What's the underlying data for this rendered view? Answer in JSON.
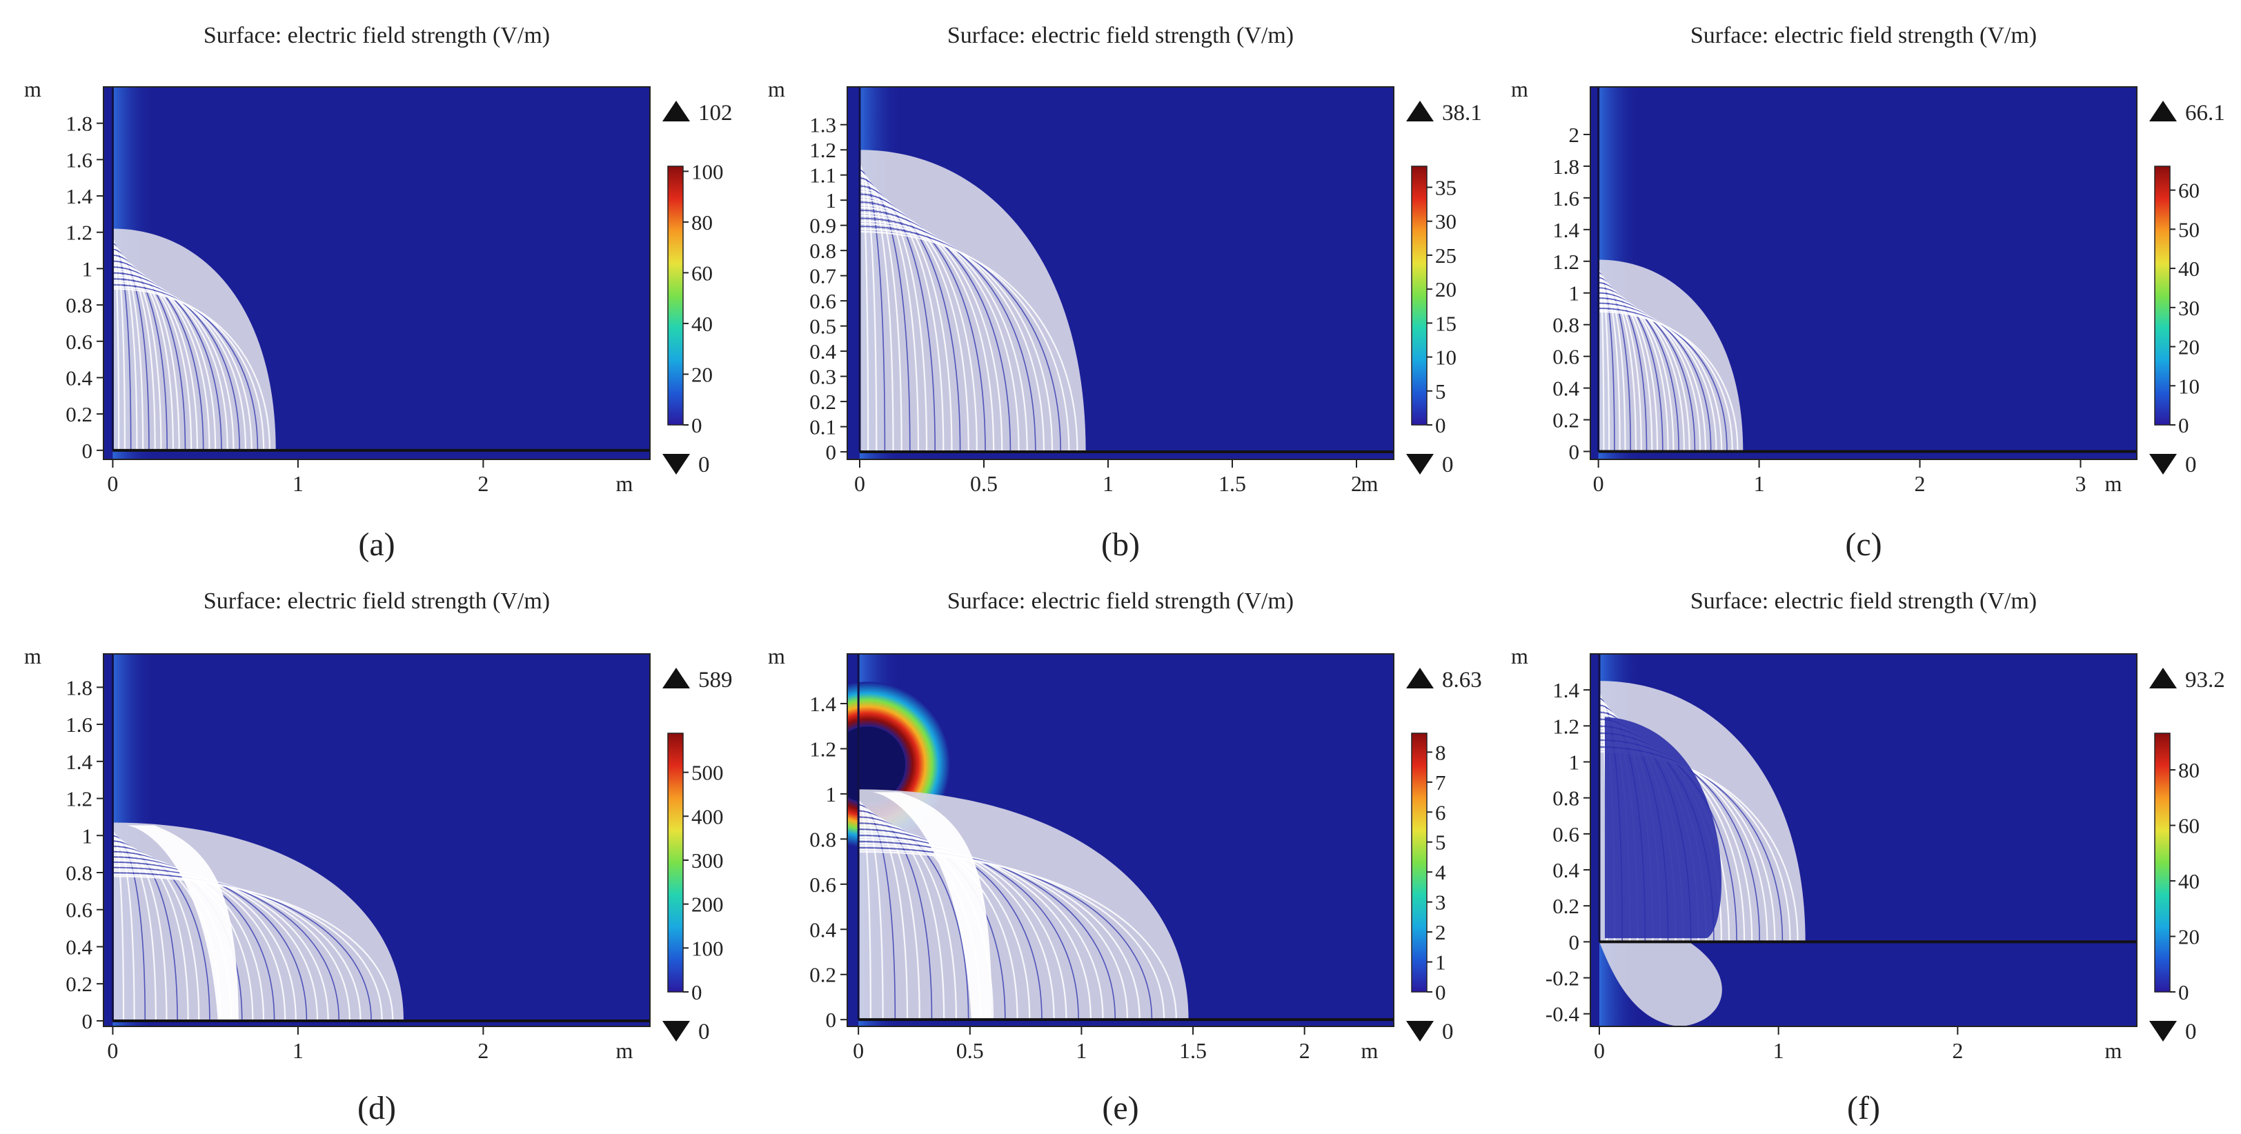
{
  "colors": {
    "background": "#1b1f96",
    "streamline": "#d6d6e6",
    "frame": "#222222"
  },
  "colorbar_stops": [
    "#2a1aa0",
    "#1f5ad6",
    "#1aa8e0",
    "#24d3b0",
    "#7be04a",
    "#e8e13a",
    "#f59a24",
    "#e02a1a",
    "#8a0d0d"
  ],
  "chart_data": [
    {
      "type": "heatmap",
      "panel_label": "(a)",
      "title": "Surface: electric field strength (V/m)",
      "xlabel": "m",
      "ylabel": "m",
      "xlim": [
        -0.05,
        2.9
      ],
      "ylim": [
        -0.05,
        2.0
      ],
      "x_ticks": [
        "0",
        "1",
        "2"
      ],
      "x_tick_values": [
        0,
        1,
        2
      ],
      "y_ticks": [
        "0",
        "0.2",
        "0.4",
        "0.6",
        "0.8",
        "1",
        "1.2",
        "1.4",
        "1.6",
        "1.8"
      ],
      "y_tick_values": [
        0,
        0.2,
        0.4,
        0.6,
        0.8,
        1,
        1.2,
        1.4,
        1.6,
        1.8
      ],
      "max_label": "102",
      "min_label": "0",
      "colorbar_range": [
        0,
        102
      ],
      "colorbar_ticks": [
        "0",
        "20",
        "40",
        "60",
        "80",
        "100"
      ],
      "colorbar_tick_values": [
        0,
        20,
        40,
        60,
        80,
        100
      ],
      "lobe": {
        "outer_x": 0.88,
        "outer_y": 1.22,
        "inner_x": 0.5,
        "gap_x": null
      }
    },
    {
      "type": "heatmap",
      "panel_label": "(b)",
      "title": "Surface: electric field strength (V/m)",
      "xlabel": "m",
      "ylabel": "m",
      "xlim": [
        -0.05,
        2.15
      ],
      "ylim": [
        -0.03,
        1.45
      ],
      "x_ticks": [
        "0",
        "0.5",
        "1",
        "1.5",
        "2"
      ],
      "x_tick_values": [
        0,
        0.5,
        1,
        1.5,
        2
      ],
      "y_ticks": [
        "0",
        "0.1",
        "0.2",
        "0.3",
        "0.4",
        "0.5",
        "0.6",
        "0.7",
        "0.8",
        "0.9",
        "1",
        "1.1",
        "1.2",
        "1.3"
      ],
      "y_tick_values": [
        0,
        0.1,
        0.2,
        0.3,
        0.4,
        0.5,
        0.6,
        0.7,
        0.8,
        0.9,
        1,
        1.1,
        1.2,
        1.3
      ],
      "max_label": "38.1",
      "min_label": "0",
      "colorbar_range": [
        0,
        38.1
      ],
      "colorbar_ticks": [
        "0",
        "5",
        "10",
        "15",
        "20",
        "25",
        "30",
        "35"
      ],
      "colorbar_tick_values": [
        0,
        5,
        10,
        15,
        20,
        25,
        30,
        35
      ],
      "lobe": {
        "outer_x": 0.91,
        "outer_y": 1.2,
        "inner_x": 0.5,
        "gap_x": null
      }
    },
    {
      "type": "heatmap",
      "panel_label": "(c)",
      "title": "Surface: electric field strength (V/m)",
      "xlabel": "m",
      "ylabel": "m",
      "xlim": [
        -0.05,
        3.35
      ],
      "ylim": [
        -0.05,
        2.3
      ],
      "x_ticks": [
        "0",
        "1",
        "2",
        "3"
      ],
      "x_tick_values": [
        0,
        1,
        2,
        3
      ],
      "y_ticks": [
        "0",
        "0.2",
        "0.4",
        "0.6",
        "0.8",
        "1",
        "1.2",
        "1.4",
        "1.6",
        "1.8",
        "2"
      ],
      "y_tick_values": [
        0,
        0.2,
        0.4,
        0.6,
        0.8,
        1,
        1.2,
        1.4,
        1.6,
        1.8,
        2
      ],
      "max_label": "66.1",
      "min_label": "0",
      "colorbar_range": [
        0,
        66.1
      ],
      "colorbar_ticks": [
        "0",
        "10",
        "20",
        "30",
        "40",
        "50",
        "60"
      ],
      "colorbar_tick_values": [
        0,
        10,
        20,
        30,
        40,
        50,
        60
      ],
      "lobe": {
        "outer_x": 0.9,
        "outer_y": 1.21,
        "inner_x": 0.5,
        "gap_x": null
      }
    },
    {
      "type": "heatmap",
      "panel_label": "(d)",
      "title": "Surface: electric field strength (V/m)",
      "xlabel": "m",
      "ylabel": "m",
      "xlim": [
        -0.05,
        2.9
      ],
      "ylim": [
        -0.03,
        1.98
      ],
      "x_ticks": [
        "0",
        "1",
        "2"
      ],
      "x_tick_values": [
        0,
        1,
        2
      ],
      "y_ticks": [
        "0",
        "0.2",
        "0.4",
        "0.6",
        "0.8",
        "1",
        "1.2",
        "1.4",
        "1.6",
        "1.8"
      ],
      "y_tick_values": [
        0,
        0.2,
        0.4,
        0.6,
        0.8,
        1,
        1.2,
        1.4,
        1.6,
        1.8
      ],
      "max_label": "589",
      "min_label": "0",
      "colorbar_range": [
        0,
        589
      ],
      "colorbar_ticks": [
        "0",
        "100",
        "200",
        "300",
        "400",
        "500"
      ],
      "colorbar_tick_values": [
        0,
        100,
        200,
        300,
        400,
        500
      ],
      "lobe": {
        "outer_x": 1.57,
        "outer_y": 1.07,
        "inner_x": 0.5,
        "gap_x": 0.62
      }
    },
    {
      "type": "heatmap",
      "panel_label": "(e)",
      "title": "Surface: electric field strength (V/m)",
      "xlabel": "m",
      "ylabel": "m",
      "xlim": [
        -0.05,
        2.4
      ],
      "ylim": [
        -0.03,
        1.62
      ],
      "x_ticks": [
        "0",
        "0.5",
        "1",
        "1.5",
        "2"
      ],
      "x_tick_values": [
        0,
        0.5,
        1,
        1.5,
        2
      ],
      "y_ticks": [
        "0",
        "0.2",
        "0.4",
        "0.6",
        "0.8",
        "1",
        "1.2",
        "1.4"
      ],
      "y_tick_values": [
        0,
        0.2,
        0.4,
        0.6,
        0.8,
        1,
        1.2,
        1.4
      ],
      "max_label": "8.63",
      "min_label": "0",
      "colorbar_range": [
        0,
        8.63
      ],
      "colorbar_ticks": [
        "0",
        "1",
        "2",
        "3",
        "4",
        "5",
        "6",
        "7",
        "8"
      ],
      "colorbar_tick_values": [
        0,
        1,
        2,
        3,
        4,
        5,
        6,
        7,
        8
      ],
      "lobe": {
        "outer_x": 1.48,
        "outer_y": 1.02,
        "inner_x": 0.55,
        "gap_x": 0.55
      }
    },
    {
      "type": "heatmap",
      "panel_label": "(f)",
      "title": "Surface: electric field strength (V/m)",
      "xlabel": "m",
      "ylabel": "m",
      "xlim": [
        -0.05,
        3.0
      ],
      "ylim": [
        -0.47,
        1.6
      ],
      "x_ticks": [
        "0",
        "1",
        "2"
      ],
      "x_tick_values": [
        0,
        1,
        2
      ],
      "y_ticks": [
        "-0.4",
        "-0.2",
        "0",
        "0.2",
        "0.4",
        "0.6",
        "0.8",
        "1",
        "1.2",
        "1.4"
      ],
      "y_tick_values": [
        -0.4,
        -0.2,
        0,
        0.2,
        0.4,
        0.6,
        0.8,
        1,
        1.2,
        1.4
      ],
      "max_label": "93.2",
      "min_label": "0",
      "colorbar_range": [
        0,
        93.2
      ],
      "colorbar_ticks": [
        "0",
        "20",
        "40",
        "60",
        "80"
      ],
      "colorbar_tick_values": [
        0,
        20,
        40,
        60,
        80
      ],
      "lobe": {
        "outer_x": 1.15,
        "outer_y": 1.45,
        "inner_x": 0.6,
        "gap_x": null
      }
    }
  ]
}
